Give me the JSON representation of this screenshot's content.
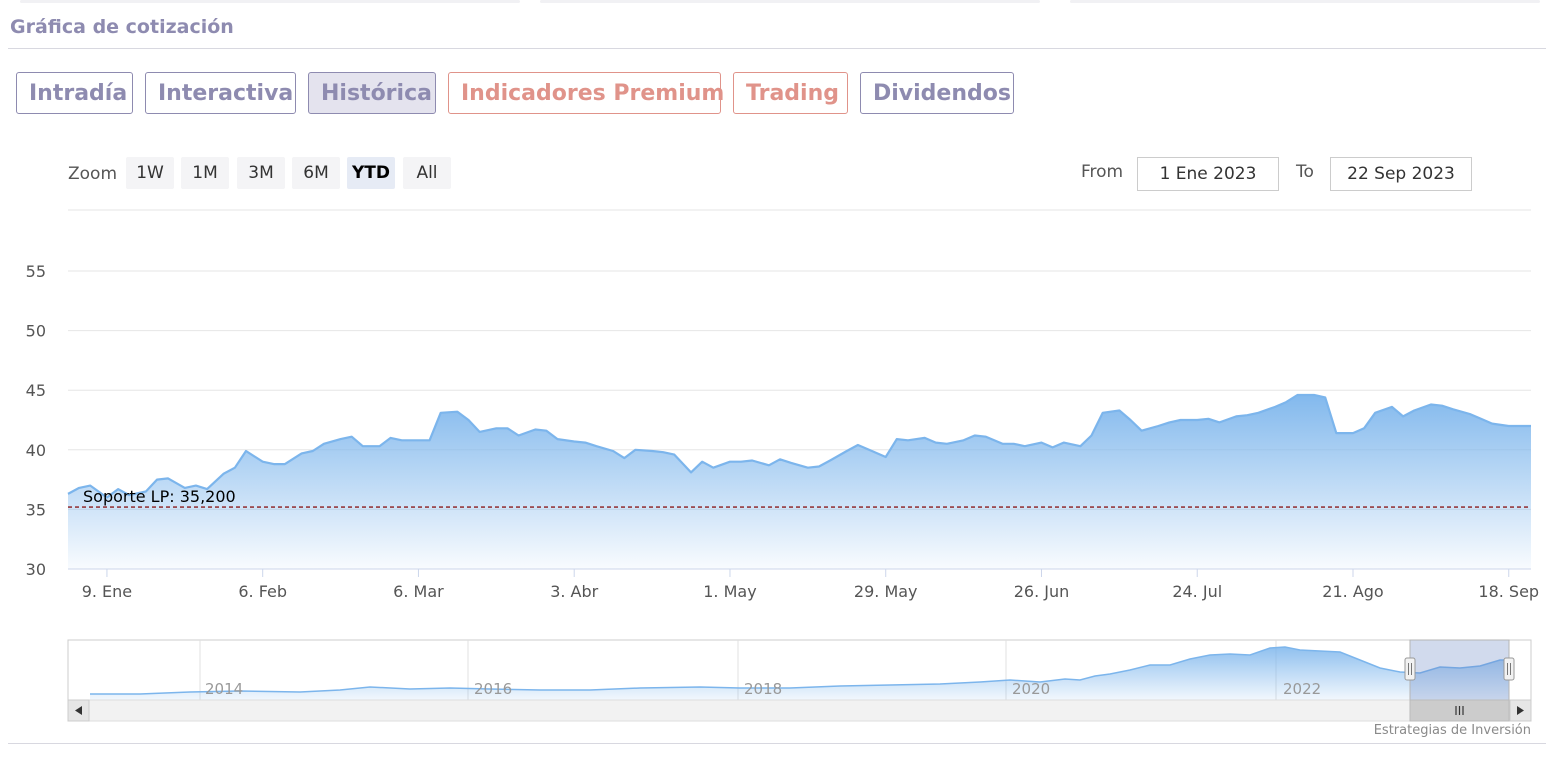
{
  "page": {
    "section_title": "Gráfica de cotización"
  },
  "tabs": [
    {
      "label": "Intradía",
      "style": "normal"
    },
    {
      "label": "Interactiva",
      "style": "normal"
    },
    {
      "label": "Histórica",
      "style": "active"
    },
    {
      "label": "Indicadores Premium",
      "style": "premium"
    },
    {
      "label": "Trading",
      "style": "premium"
    },
    {
      "label": "Dividendos",
      "style": "normal"
    }
  ],
  "zoom": {
    "label": "Zoom",
    "buttons": [
      "1W",
      "1M",
      "3M",
      "6M",
      "YTD",
      "All"
    ],
    "selected": "YTD"
  },
  "range": {
    "from_label": "From",
    "from_value": "1 Ene 2023",
    "to_label": "To",
    "to_value": "22 Sep 2023"
  },
  "credits": "Estrategias de Inversión",
  "colors": {
    "accent": "#8e8bb0",
    "premium": "#e0938a",
    "series": "#7cb5ec",
    "support": "#8b1a1a"
  },
  "chart_data": {
    "type": "area",
    "ylim": [
      30,
      55
    ],
    "yticks": [
      "30",
      "35",
      "40",
      "45",
      "50",
      "55"
    ],
    "grid": true,
    "x_start": "2023-01-02",
    "x_end": "2023-09-22",
    "xticks": [
      {
        "date": "2023-01-09",
        "label": "9. Ene"
      },
      {
        "date": "2023-02-06",
        "label": "6. Feb"
      },
      {
        "date": "2023-03-06",
        "label": "6. Mar"
      },
      {
        "date": "2023-04-03",
        "label": "3. Abr"
      },
      {
        "date": "2023-05-01",
        "label": "1. May"
      },
      {
        "date": "2023-05-29",
        "label": "29. May"
      },
      {
        "date": "2023-06-26",
        "label": "26. Jun"
      },
      {
        "date": "2023-07-24",
        "label": "24. Jul"
      },
      {
        "date": "2023-08-21",
        "label": "21. Ago"
      },
      {
        "date": "2023-09-18",
        "label": "18. Sep"
      }
    ],
    "series": [
      {
        "values": [
          [
            "2023-01-02",
            36.3
          ],
          [
            "2023-01-04",
            36.8
          ],
          [
            "2023-01-06",
            37.0
          ],
          [
            "2023-01-09",
            36.0
          ],
          [
            "2023-01-11",
            36.7
          ],
          [
            "2023-01-13",
            36.2
          ],
          [
            "2023-01-16",
            36.5
          ],
          [
            "2023-01-18",
            37.5
          ],
          [
            "2023-01-20",
            37.6
          ],
          [
            "2023-01-23",
            36.8
          ],
          [
            "2023-01-25",
            37.0
          ],
          [
            "2023-01-27",
            36.7
          ],
          [
            "2023-01-30",
            38.0
          ],
          [
            "2023-02-01",
            38.5
          ],
          [
            "2023-02-03",
            39.9
          ],
          [
            "2023-02-06",
            39.0
          ],
          [
            "2023-02-08",
            38.8
          ],
          [
            "2023-02-10",
            38.8
          ],
          [
            "2023-02-13",
            39.7
          ],
          [
            "2023-02-15",
            39.9
          ],
          [
            "2023-02-17",
            40.5
          ],
          [
            "2023-02-20",
            40.9
          ],
          [
            "2023-02-22",
            41.1
          ],
          [
            "2023-02-24",
            40.3
          ],
          [
            "2023-02-27",
            40.3
          ],
          [
            "2023-03-01",
            41.0
          ],
          [
            "2023-03-03",
            40.8
          ],
          [
            "2023-03-06",
            40.8
          ],
          [
            "2023-03-08",
            40.8
          ],
          [
            "2023-03-10",
            43.1
          ],
          [
            "2023-03-13",
            43.2
          ],
          [
            "2023-03-15",
            42.5
          ],
          [
            "2023-03-17",
            41.5
          ],
          [
            "2023-03-20",
            41.8
          ],
          [
            "2023-03-22",
            41.8
          ],
          [
            "2023-03-24",
            41.2
          ],
          [
            "2023-03-27",
            41.7
          ],
          [
            "2023-03-29",
            41.6
          ],
          [
            "2023-03-31",
            40.9
          ],
          [
            "2023-04-03",
            40.7
          ],
          [
            "2023-04-05",
            40.6
          ],
          [
            "2023-04-07",
            40.3
          ],
          [
            "2023-04-10",
            39.9
          ],
          [
            "2023-04-12",
            39.3
          ],
          [
            "2023-04-14",
            40.0
          ],
          [
            "2023-04-17",
            39.9
          ],
          [
            "2023-04-19",
            39.8
          ],
          [
            "2023-04-21",
            39.6
          ],
          [
            "2023-04-24",
            38.1
          ],
          [
            "2023-04-26",
            39.0
          ],
          [
            "2023-04-28",
            38.5
          ],
          [
            "2023-05-01",
            39.0
          ],
          [
            "2023-05-03",
            39.0
          ],
          [
            "2023-05-05",
            39.1
          ],
          [
            "2023-05-08",
            38.7
          ],
          [
            "2023-05-10",
            39.2
          ],
          [
            "2023-05-12",
            38.9
          ],
          [
            "2023-05-15",
            38.5
          ],
          [
            "2023-05-17",
            38.6
          ],
          [
            "2023-05-19",
            39.1
          ],
          [
            "2023-05-22",
            39.9
          ],
          [
            "2023-05-24",
            40.4
          ],
          [
            "2023-05-26",
            40.0
          ],
          [
            "2023-05-29",
            39.4
          ],
          [
            "2023-05-31",
            40.9
          ],
          [
            "2023-06-02",
            40.8
          ],
          [
            "2023-06-05",
            41.0
          ],
          [
            "2023-06-07",
            40.6
          ],
          [
            "2023-06-09",
            40.5
          ],
          [
            "2023-06-12",
            40.8
          ],
          [
            "2023-06-14",
            41.2
          ],
          [
            "2023-06-16",
            41.1
          ],
          [
            "2023-06-19",
            40.5
          ],
          [
            "2023-06-21",
            40.5
          ],
          [
            "2023-06-23",
            40.3
          ],
          [
            "2023-06-26",
            40.6
          ],
          [
            "2023-06-28",
            40.2
          ],
          [
            "2023-06-30",
            40.6
          ],
          [
            "2023-07-03",
            40.3
          ],
          [
            "2023-07-05",
            41.2
          ],
          [
            "2023-07-07",
            43.1
          ],
          [
            "2023-07-10",
            43.3
          ],
          [
            "2023-07-12",
            42.5
          ],
          [
            "2023-07-14",
            41.6
          ],
          [
            "2023-07-17",
            42.0
          ],
          [
            "2023-07-19",
            42.3
          ],
          [
            "2023-07-21",
            42.5
          ],
          [
            "2023-07-24",
            42.5
          ],
          [
            "2023-07-26",
            42.6
          ],
          [
            "2023-07-28",
            42.3
          ],
          [
            "2023-07-31",
            42.8
          ],
          [
            "2023-08-02",
            42.9
          ],
          [
            "2023-08-04",
            43.1
          ],
          [
            "2023-08-07",
            43.6
          ],
          [
            "2023-08-09",
            44.0
          ],
          [
            "2023-08-11",
            44.6
          ],
          [
            "2023-08-14",
            44.6
          ],
          [
            "2023-08-16",
            44.4
          ],
          [
            "2023-08-18",
            41.4
          ],
          [
            "2023-08-21",
            41.4
          ],
          [
            "2023-08-23",
            41.8
          ],
          [
            "2023-08-25",
            43.1
          ],
          [
            "2023-08-28",
            43.6
          ],
          [
            "2023-08-30",
            42.8
          ],
          [
            "2023-09-01",
            43.3
          ],
          [
            "2023-09-04",
            43.8
          ],
          [
            "2023-09-06",
            43.7
          ],
          [
            "2023-09-08",
            43.4
          ],
          [
            "2023-09-11",
            43.0
          ],
          [
            "2023-09-13",
            42.6
          ],
          [
            "2023-09-15",
            42.2
          ],
          [
            "2023-09-18",
            42.0
          ]
        ]
      }
    ],
    "annotations": [
      {
        "type": "hline",
        "y": 35.2,
        "label": "Soporte LP: 35,200",
        "style": "dashed"
      }
    ],
    "navigator": {
      "labels": [
        "2014",
        "2016",
        "2018",
        "2020",
        "2022"
      ]
    }
  }
}
